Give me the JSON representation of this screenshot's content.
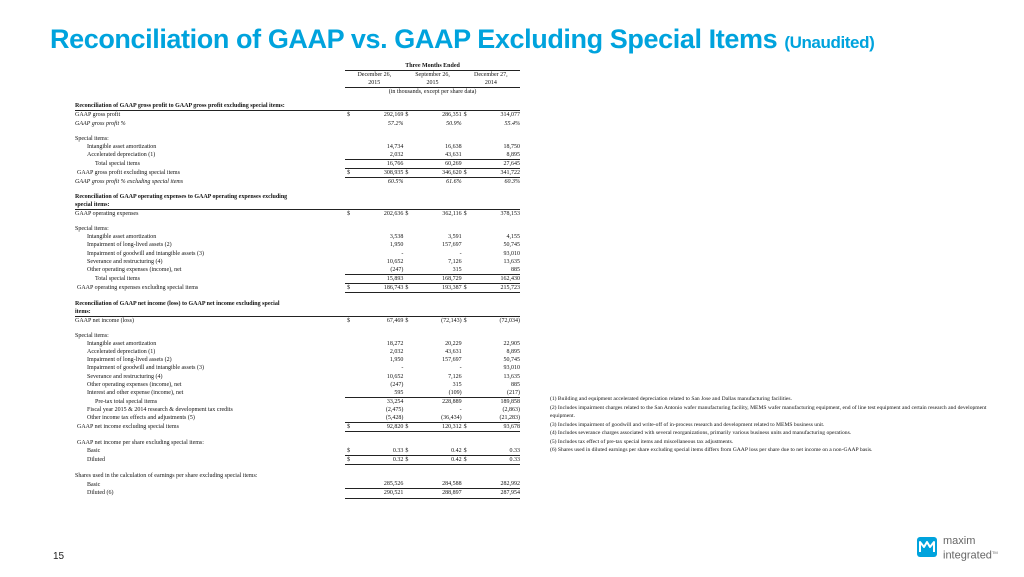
{
  "title": {
    "main": "Reconciliation of GAAP vs. GAAP Excluding Special Items",
    "sub": "(Unaudited)"
  },
  "table": {
    "period_label": "Three Months Ended",
    "columns": [
      {
        "line1": "December 26,",
        "line2": "2015"
      },
      {
        "line1": "September 26,",
        "line2": "2015"
      },
      {
        "line1": "December 27,",
        "line2": "2014"
      }
    ],
    "unit_note": "(in thousands, except per share data)",
    "rows": [
      {
        "type": "header",
        "label": "Reconciliation of GAAP gross profit to GAAP gross profit excluding special items:"
      },
      {
        "type": "data",
        "label": "GAAP gross profit",
        "dollar": true,
        "values": [
          "292,169",
          "286,351",
          "314,077"
        ]
      },
      {
        "type": "data",
        "italic": true,
        "label": "GAAP gross profit %",
        "values": [
          "57.2%",
          "50.9%",
          "55.4%"
        ]
      },
      {
        "type": "blank"
      },
      {
        "type": "data",
        "label": "Special items:"
      },
      {
        "type": "data",
        "indent": 1,
        "label": "Intangible asset amortization",
        "values": [
          "14,734",
          "16,638",
          "18,750"
        ]
      },
      {
        "type": "data",
        "indent": 1,
        "label": "Accelerated depreciation (1)",
        "values": [
          "2,032",
          "43,631",
          "8,895"
        ],
        "underline": true
      },
      {
        "type": "data",
        "indent": 2,
        "label": "Total special items",
        "values": [
          "16,766",
          "60,269",
          "27,645"
        ],
        "underline": true
      },
      {
        "type": "data",
        "indent": 0.5,
        "label": "GAAP gross profit excluding special items",
        "dollar": true,
        "values": [
          "308,935",
          "346,620",
          "341,722"
        ],
        "underline": true
      },
      {
        "type": "data",
        "italic": true,
        "label": "GAAP gross profit % excluding special items",
        "values": [
          "60.5%",
          "61.6%",
          "60.3%"
        ]
      },
      {
        "type": "blank"
      },
      {
        "type": "header",
        "label": "Reconciliation of GAAP operating expenses to GAAP operating expenses excluding"
      },
      {
        "type": "header",
        "label": "special items:"
      },
      {
        "type": "data",
        "label": "GAAP operating expenses",
        "dollar": true,
        "values": [
          "202,636",
          "362,116",
          "378,153"
        ]
      },
      {
        "type": "blank"
      },
      {
        "type": "data",
        "label": "Special items:"
      },
      {
        "type": "data",
        "indent": 1,
        "label": "Intangible asset amortization",
        "values": [
          "3,538",
          "3,591",
          "4,155"
        ]
      },
      {
        "type": "data",
        "indent": 1,
        "label": "Impairment of long-lived assets (2)",
        "values": [
          "1,950",
          "157,697",
          "50,745"
        ]
      },
      {
        "type": "data",
        "indent": 1,
        "label": "Impairment of goodwill and intangible assets (3)",
        "values": [
          "-",
          "-",
          "93,010"
        ]
      },
      {
        "type": "data",
        "indent": 1,
        "label": "Severance and restructuring (4)",
        "values": [
          "10,652",
          "7,126",
          "13,635"
        ]
      },
      {
        "type": "data",
        "indent": 1,
        "label": "Other operating expenses (income), net",
        "values": [
          "(247)",
          "315",
          "885"
        ],
        "underline": true
      },
      {
        "type": "data",
        "indent": 2,
        "label": "Total special items",
        "values": [
          "15,893",
          "168,729",
          "162,430"
        ],
        "underline": true
      },
      {
        "type": "data",
        "indent": 0.5,
        "label": "GAAP operating expenses excluding special items",
        "dollar": true,
        "values": [
          "186,743",
          "193,387",
          "215,723"
        ],
        "underline": true
      },
      {
        "type": "blank"
      },
      {
        "type": "header",
        "label": "Reconciliation of GAAP net income (loss) to GAAP net income excluding special"
      },
      {
        "type": "header",
        "label": "items:"
      },
      {
        "type": "data",
        "label": "GAAP net income (loss)",
        "dollar": true,
        "values": [
          "67,469",
          "(72,143)",
          "(72,034)"
        ]
      },
      {
        "type": "blank"
      },
      {
        "type": "data",
        "label": "Special items:"
      },
      {
        "type": "data",
        "indent": 1,
        "label": "Intangible asset amortization",
        "values": [
          "18,272",
          "20,229",
          "22,905"
        ]
      },
      {
        "type": "data",
        "indent": 1,
        "label": "Accelerated depreciation (1)",
        "values": [
          "2,032",
          "43,631",
          "8,895"
        ]
      },
      {
        "type": "data",
        "indent": 1,
        "label": "Impairment of long-lived assets (2)",
        "values": [
          "1,950",
          "157,697",
          "50,745"
        ]
      },
      {
        "type": "data",
        "indent": 1,
        "label": "Impairment of goodwill and intangible assets (3)",
        "values": [
          "-",
          "-",
          "93,010"
        ]
      },
      {
        "type": "data",
        "indent": 1,
        "label": "Severance and restructuring (4)",
        "values": [
          "10,652",
          "7,126",
          "13,635"
        ]
      },
      {
        "type": "data",
        "indent": 1,
        "label": "Other operating expenses (income), net",
        "values": [
          "(247)",
          "315",
          "885"
        ]
      },
      {
        "type": "data",
        "indent": 1,
        "label": "Interest and other expense (income), net",
        "values": [
          "595",
          "(109)",
          "(217)"
        ],
        "underline": true
      },
      {
        "type": "data",
        "indent": 2,
        "label": "Pre-tax total special items",
        "values": [
          "33,254",
          "228,889",
          "189,858"
        ]
      },
      {
        "type": "data",
        "indent": 1,
        "label": "Fiscal year 2015 & 2014 research & development tax credits",
        "values": [
          "(2,475)",
          "-",
          "(2,863)"
        ]
      },
      {
        "type": "data",
        "indent": 1,
        "label": "Other income tax effects and adjustments (5)",
        "values": [
          "(5,428)",
          "(36,434)",
          "(21,283)"
        ],
        "underline": true
      },
      {
        "type": "data",
        "indent": 0.5,
        "label": "GAAP net income excluding special items",
        "dollar": true,
        "values": [
          "92,820",
          "120,312",
          "93,678"
        ],
        "underline": true
      },
      {
        "type": "blank"
      },
      {
        "type": "data",
        "indent": 0.5,
        "label": "GAAP net income per share excluding special items:"
      },
      {
        "type": "data",
        "indent": 1,
        "label": "Basic",
        "dollar": true,
        "values": [
          "0.33",
          "0.42",
          "0.33"
        ],
        "underline": true
      },
      {
        "type": "data",
        "indent": 1,
        "label": "Diluted",
        "dollar": true,
        "values": [
          "0.32",
          "0.42",
          "0.33"
        ],
        "underline": true
      },
      {
        "type": "blank"
      },
      {
        "type": "data",
        "label": "Shares used in the calculation of earnings per share excluding special items:"
      },
      {
        "type": "data",
        "indent": 1,
        "label": "Basic",
        "values": [
          "285,526",
          "284,588",
          "282,992"
        ],
        "underline": true
      },
      {
        "type": "data",
        "indent": 1,
        "label": "Diluted (6)",
        "values": [
          "290,521",
          "288,897",
          "287,954"
        ],
        "underline": true
      }
    ]
  },
  "notes": [
    "(1) Building and equipment accelerated depreciation related to San Jose and Dallas manufacturing facilities.",
    "(2) Includes impairment charges related to the San Antonio wafer manufacturing facility, MEMS wafer manufacturing equipment, end of line test equipment and certain research and development equipment.",
    "(3) Includes impairment of goodwill and write-off of in-process research and development related to MEMS business unit.",
    "(4) Includes severance charges associated with several reorganizations, primarily various business units and manufacturing operations.",
    "(5) Includes tax effect of pre-tax special items and miscellaneous tax adjustments.",
    "(6) Shares used in diluted earnings per share excluding special items differs from GAAP loss per share due to net income on a non-GAAP basis."
  ],
  "page_number": "15",
  "logo": {
    "line1": "maxim",
    "line2": "integrated",
    "tm": "TM",
    "brand_color": "#00a3dd",
    "icon": "maxim-logo-icon"
  },
  "colors": {
    "title": "#00a3dd"
  }
}
